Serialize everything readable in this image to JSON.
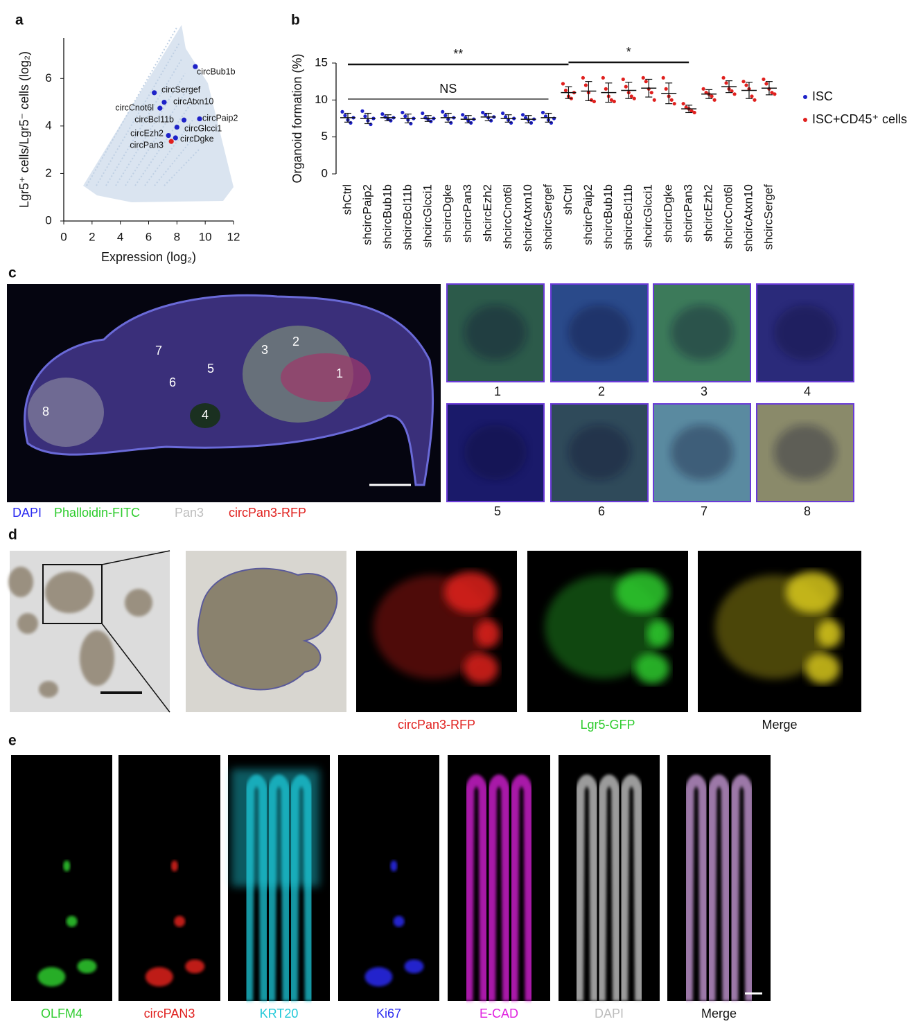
{
  "panel_labels": [
    "a",
    "b",
    "c",
    "d",
    "e"
  ],
  "chart_data": [
    {
      "type": "scatter",
      "x_label": "Expression (log₂)",
      "y_label": "Lgr5⁺ cells/Lgr5⁻ cells (log₂)",
      "xlim": [
        0,
        12
      ],
      "xticks": [
        0,
        2,
        4,
        6,
        8,
        10,
        12
      ],
      "ylim": [
        0,
        7.7
      ],
      "yticks": [
        0,
        2,
        4,
        6
      ],
      "points": [
        {
          "label": "circBub1b",
          "x": 9.3,
          "y": 6.5,
          "color": "#1e22c8"
        },
        {
          "label": "circSergef",
          "x": 6.4,
          "y": 5.4,
          "color": "#1e22c8"
        },
        {
          "label": "circAtxn10",
          "x": 7.1,
          "y": 5.0,
          "color": "#1e22c8"
        },
        {
          "label": "circCnot6l",
          "x": 6.8,
          "y": 4.75,
          "color": "#1e22c8"
        },
        {
          "label": "circPaip2",
          "x": 9.6,
          "y": 4.3,
          "color": "#1e22c8"
        },
        {
          "label": "circBcl11b",
          "x": 8.5,
          "y": 4.25,
          "color": "#1e22c8"
        },
        {
          "label": "circGlcci1",
          "x": 8.0,
          "y": 3.95,
          "color": "#1e22c8"
        },
        {
          "label": "circEzh2",
          "x": 7.4,
          "y": 3.6,
          "color": "#1e22c8"
        },
        {
          "label": "circDgke",
          "x": 7.9,
          "y": 3.5,
          "color": "#1e22c8"
        },
        {
          "label": "circPan3",
          "x": 7.6,
          "y": 3.35,
          "color": "#e0201e"
        }
      ]
    },
    {
      "type": "dot",
      "y_label": "Organoid formation (%)",
      "ylim": [
        0,
        15
      ],
      "yticks": [
        0,
        5,
        10,
        15
      ],
      "categories": [
        "shCtrl",
        "shcircPaip2",
        "shcircBub1b",
        "shcircBcl11b",
        "shcircGlcci1",
        "shcircDgke",
        "shcircPan3",
        "shcircEzh2",
        "shcircCnot6l",
        "shcircAtxn10",
        "shcircSergef",
        "shCtrl",
        "shcircPaip2",
        "shcircBub1b",
        "shcircBcl11b",
        "shcircGlcci1",
        "shcircDgke",
        "shcircPan3",
        "shcircEzh2",
        "shcircCnot6l",
        "shcircAtxn10",
        "shcircSergef"
      ],
      "annotations": [
        "**",
        "*",
        "NS"
      ],
      "series": [
        {
          "name": "ISC",
          "color": "#1e22c8",
          "points": [
            [
              8.4,
              7.9,
              7.3,
              6.9,
              7.6
            ],
            [
              8.5,
              7.8,
              7.2,
              6.7,
              7.5
            ],
            [
              8.1,
              7.7,
              7.4,
              7.2,
              7.6
            ],
            [
              8.3,
              7.8,
              7.3,
              6.8,
              7.5
            ],
            [
              8.2,
              7.6,
              7.4,
              7.1,
              7.5
            ],
            [
              8.4,
              7.9,
              7.4,
              6.9,
              7.6
            ],
            [
              8.0,
              7.6,
              7.2,
              6.9,
              7.4
            ],
            [
              8.3,
              8.0,
              7.6,
              7.2,
              7.7
            ],
            [
              8.2,
              7.7,
              7.3,
              6.9,
              7.5
            ],
            [
              8.0,
              7.6,
              7.3,
              6.9,
              7.4
            ],
            [
              8.3,
              7.8,
              7.3,
              6.9,
              7.5
            ],
            null,
            null,
            null,
            null,
            null,
            null,
            null,
            null,
            null,
            null,
            null
          ],
          "mean": [
            7.6,
            7.5,
            7.6,
            7.5,
            7.5,
            7.6,
            7.4,
            7.7,
            7.5,
            7.4,
            7.6,
            null,
            null,
            null,
            null,
            null,
            null,
            null,
            null,
            null,
            null,
            null
          ],
          "sd": [
            0.6,
            0.7,
            0.4,
            0.6,
            0.4,
            0.6,
            0.5,
            0.5,
            0.5,
            0.5,
            0.6,
            null,
            null,
            null,
            null,
            null,
            null,
            null,
            null,
            null,
            null,
            null
          ]
        },
        {
          "name": "ISC+CD45⁺ cells",
          "color": "#e0201e",
          "points": [
            null,
            null,
            null,
            null,
            null,
            null,
            null,
            null,
            null,
            null,
            null,
            [
              12.2,
              11.3,
              10.5,
              10.2,
              11.0
            ],
            [
              13.0,
              12.0,
              11.0,
              10.0,
              9.8
            ],
            [
              13.0,
              11.5,
              10.5,
              10.0,
              9.8
            ],
            [
              12.8,
              11.8,
              11.0,
              10.5,
              10.2
            ],
            [
              13.0,
              12.5,
              11.5,
              11.0,
              10.0
            ],
            [
              13.0,
              11.5,
              10.5,
              10.0,
              9.5
            ],
            [
              9.5,
              9.0,
              8.8,
              8.5,
              8.3
            ],
            [
              11.5,
              11.0,
              10.8,
              10.5,
              10.0
            ],
            [
              13.0,
              12.3,
              11.5,
              11.2,
              10.8
            ],
            [
              12.5,
              12.0,
              11.5,
              10.5,
              10.0
            ],
            [
              12.8,
              12.2,
              11.5,
              11.0,
              10.8
            ]
          ],
          "mean": [
            null,
            null,
            null,
            null,
            null,
            null,
            null,
            null,
            null,
            null,
            null,
            11.0,
            11.2,
            11.0,
            11.3,
            11.6,
            10.9,
            8.8,
            10.8,
            11.8,
            11.3,
            11.6
          ],
          "sd": [
            null,
            null,
            null,
            null,
            null,
            null,
            null,
            null,
            null,
            null,
            null,
            0.8,
            1.3,
            1.3,
            1.1,
            1.2,
            1.4,
            0.5,
            0.6,
            0.8,
            1.1,
            0.9
          ]
        }
      ]
    }
  ],
  "panel_c": {
    "regions": [
      "1",
      "2",
      "3",
      "4",
      "5",
      "6",
      "7",
      "8"
    ],
    "channels": [
      {
        "name": "DAPI",
        "color": "#2b2bf0"
      },
      {
        "name": "Phalloidin-FITC",
        "color": "#2ecc2e"
      },
      {
        "name": "Pan3",
        "color": "#bdbdbd"
      },
      {
        "name": "circPan3-RFP",
        "color": "#e0201e"
      }
    ]
  },
  "panel_d": {
    "captions": [
      {
        "text": "circPan3-RFP",
        "color": "#e0201e"
      },
      {
        "text": "Lgr5-GFP",
        "color": "#2ecc2e"
      },
      {
        "text": "Merge",
        "color": "#111111"
      }
    ]
  },
  "panel_e": {
    "captions": [
      {
        "text": "OLFM4",
        "color": "#2ecc2e"
      },
      {
        "text": "circPAN3",
        "color": "#e0201e"
      },
      {
        "text": "KRT20",
        "color": "#1ec8d8"
      },
      {
        "text": "Ki67",
        "color": "#2b2bf0"
      },
      {
        "text": "E-CAD",
        "color": "#e020e0"
      },
      {
        "text": "DAPI",
        "color": "#bdbdbd"
      },
      {
        "text": "Merge",
        "color": "#111111"
      }
    ]
  }
}
